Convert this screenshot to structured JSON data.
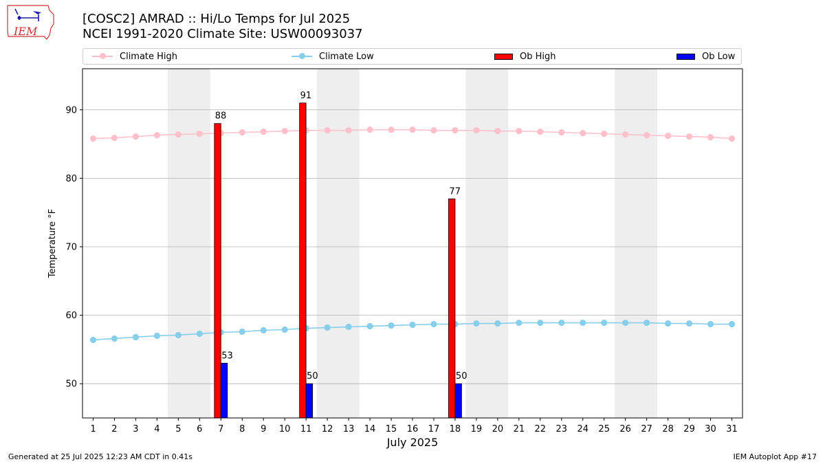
{
  "logo": {
    "text": "IEM"
  },
  "header": {
    "title_line1": "[COSC2] AMRAD :: Hi/Lo Temps for Jul 2025",
    "title_line2": "NCEI 1991-2020 Climate Site: USW00093037"
  },
  "legend": {
    "climate_high": "Climate High",
    "climate_low": "Climate Low",
    "ob_high": "Ob High",
    "ob_low": "Ob Low"
  },
  "footer": {
    "left": "Generated at 25 Jul 2025 12:23 AM CDT in 0.41s",
    "right": "IEM Autoplot App #17"
  },
  "colors": {
    "climate_high": "#ffc0cb",
    "climate_low": "#87ceeb",
    "ob_high": "#ff0000",
    "ob_low": "#0000ff",
    "weekend_shade": "#eeeeee",
    "grid": "#b0b0b0"
  },
  "chart_data": {
    "type": "bar",
    "xlabel": "July 2025",
    "ylabel": "Temperature °F",
    "ylim": [
      45,
      96
    ],
    "xlim": [
      0.5,
      31.5
    ],
    "yticks": [
      50,
      60,
      70,
      80,
      90
    ],
    "grid": "horizontal",
    "legend_position": "top",
    "days": [
      1,
      2,
      3,
      4,
      5,
      6,
      7,
      8,
      9,
      10,
      11,
      12,
      13,
      14,
      15,
      16,
      17,
      18,
      19,
      20,
      21,
      22,
      23,
      24,
      25,
      26,
      27,
      28,
      29,
      30,
      31
    ],
    "weekend_spans": [
      [
        4.5,
        6.5
      ],
      [
        11.5,
        13.5
      ],
      [
        18.5,
        20.5
      ],
      [
        25.5,
        27.5
      ]
    ],
    "climate_high": [
      85.8,
      85.9,
      86.1,
      86.3,
      86.4,
      86.5,
      86.6,
      86.7,
      86.8,
      86.9,
      87.0,
      87.0,
      87.0,
      87.1,
      87.1,
      87.1,
      87.0,
      87.0,
      87.0,
      86.9,
      86.9,
      86.8,
      86.7,
      86.6,
      86.5,
      86.4,
      86.3,
      86.2,
      86.1,
      86.0,
      85.8
    ],
    "climate_low": [
      56.4,
      56.6,
      56.8,
      57.0,
      57.1,
      57.3,
      57.5,
      57.6,
      57.8,
      57.9,
      58.1,
      58.2,
      58.3,
      58.4,
      58.5,
      58.6,
      58.7,
      58.7,
      58.8,
      58.8,
      58.9,
      58.9,
      58.9,
      58.9,
      58.9,
      58.9,
      58.9,
      58.8,
      58.8,
      58.7,
      58.7
    ],
    "ob_high": [
      {
        "day": 7,
        "value": 88,
        "label": "88"
      },
      {
        "day": 11,
        "value": 91,
        "label": "91"
      },
      {
        "day": 18,
        "value": 77,
        "label": "77"
      }
    ],
    "ob_low": [
      {
        "day": 7,
        "value": 53,
        "label": "53"
      },
      {
        "day": 11,
        "value": 50,
        "label": "50"
      },
      {
        "day": 18,
        "value": 50,
        "label": "50"
      }
    ]
  }
}
